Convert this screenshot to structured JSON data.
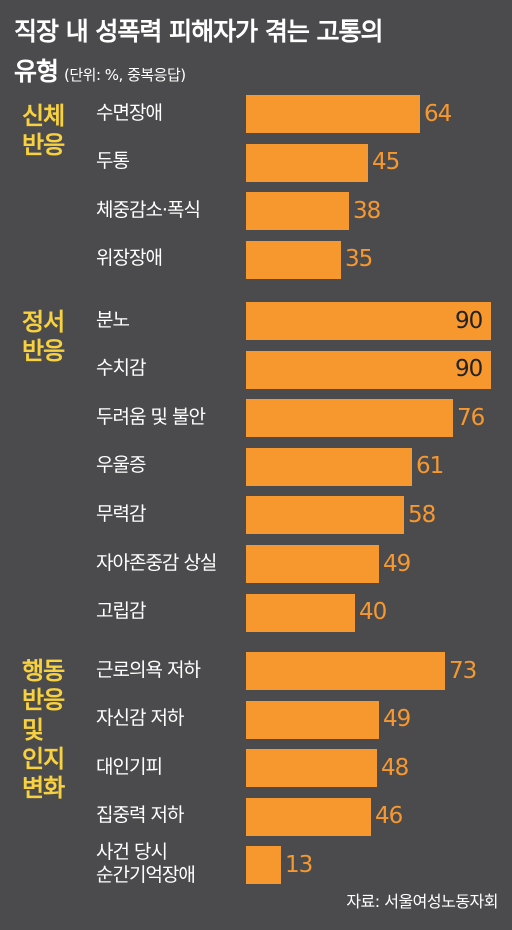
{
  "title": "직장 내 성폭력 피해자가 겪는 고통의",
  "title_cont": "유형",
  "subtitle": "(단위: %, 중복응답)",
  "source": "자료: 서울여성노동자회",
  "colors": {
    "bar": "#f7982f",
    "group_label": "#f7d13f",
    "background": "#4b4b4d"
  },
  "chart_data": {
    "type": "bar",
    "orientation": "horizontal",
    "unit": "%",
    "xlim": [
      0,
      90
    ],
    "groups": [
      {
        "label_lines": [
          "신체",
          "반응"
        ],
        "items": [
          {
            "label": "수면장애",
            "value": 64
          },
          {
            "label": "두통",
            "value": 45
          },
          {
            "label": "체중감소·폭식",
            "value": 38
          },
          {
            "label": "위장장애",
            "value": 35
          }
        ]
      },
      {
        "label_lines": [
          "정서",
          "반응"
        ],
        "items": [
          {
            "label": "분노",
            "value": 90
          },
          {
            "label": "수치감",
            "value": 90
          },
          {
            "label": "두려움 및 불안",
            "value": 76
          },
          {
            "label": "우울증",
            "value": 61
          },
          {
            "label": "무력감",
            "value": 58
          },
          {
            "label": "자아존중감 상실",
            "value": 49
          },
          {
            "label": "고립감",
            "value": 40
          }
        ]
      },
      {
        "label_lines": [
          "행동",
          "반응",
          "및",
          "인지",
          "변화"
        ],
        "items": [
          {
            "label": "근로의욕 저하",
            "value": 73
          },
          {
            "label": "자신감 저하",
            "value": 49
          },
          {
            "label": "대인기피",
            "value": 48
          },
          {
            "label": "집중력 저하",
            "value": 46
          },
          {
            "label": "사건 당시\n순간기억장애",
            "value": 13
          }
        ]
      }
    ]
  }
}
